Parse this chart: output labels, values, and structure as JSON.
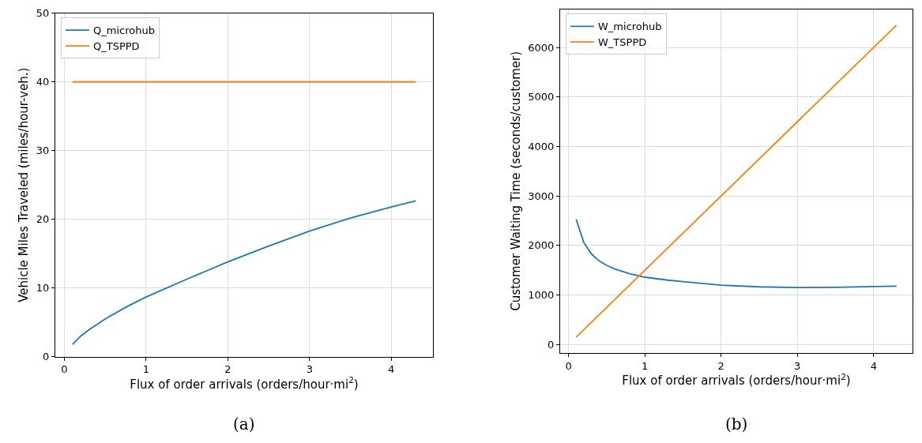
{
  "chart_data": [
    {
      "type": "line",
      "xlabel": "Flux of order arrivals (orders/hour·mi$^{2}$)",
      "ylabel": "Vehicle Miles Traveled (miles/hour-veh.)",
      "annotations": [
        "(a)"
      ],
      "xlim": [
        -0.11,
        4.51
      ],
      "xticks": [
        0,
        1,
        2,
        3,
        4
      ],
      "ylim": [
        0,
        50
      ],
      "yticks": [
        0,
        10,
        20,
        30,
        40,
        50
      ],
      "grid": true,
      "legend": "top left",
      "series": [
        {
          "name": "Q_microhub",
          "color": "#1f77b4",
          "x": [
            0.1,
            0.2,
            0.3,
            0.5,
            0.75,
            1,
            1.5,
            2,
            2.5,
            3,
            3.5,
            4,
            4.3
          ],
          "values": [
            1.8,
            3.0,
            3.9,
            5.5,
            7.2,
            8.7,
            11.3,
            13.8,
            16.1,
            18.3,
            20.2,
            21.8,
            22.7
          ]
        },
        {
          "name": "Q_TSPPD",
          "color": "#ff7f0e",
          "x": [
            0.1,
            4.3
          ],
          "values": [
            40,
            40
          ]
        }
      ]
    },
    {
      "type": "line",
      "xlabel": "Flux of order arrivals (orders/hour·mi$^{2}$)",
      "ylabel": "Customer Waiting Time (seconds/customer)",
      "annotations": [
        "(b)"
      ],
      "xlim": [
        -0.11,
        4.51
      ],
      "xticks": [
        0,
        1,
        2,
        3,
        4
      ],
      "ylim": [
        -170,
        6770
      ],
      "yticks": [
        0,
        1000,
        2000,
        3000,
        4000,
        5000,
        6000
      ],
      "grid": true,
      "legend": "top left",
      "series": [
        {
          "name": "W_microhub",
          "color": "#1f77b4",
          "x": [
            0.1,
            0.2,
            0.3,
            0.4,
            0.5,
            0.6,
            0.8,
            1,
            1.3,
            1.5,
            2,
            2.5,
            3,
            3.5,
            4,
            4.3
          ],
          "values": [
            2530,
            2060,
            1830,
            1690,
            1600,
            1530,
            1430,
            1360,
            1300,
            1270,
            1200,
            1165,
            1150,
            1155,
            1170,
            1180
          ]
        },
        {
          "name": "W_TSPPD",
          "color": "#ff7f0e",
          "x": [
            0.1,
            4.3
          ],
          "values": [
            150,
            6450
          ]
        }
      ]
    }
  ]
}
